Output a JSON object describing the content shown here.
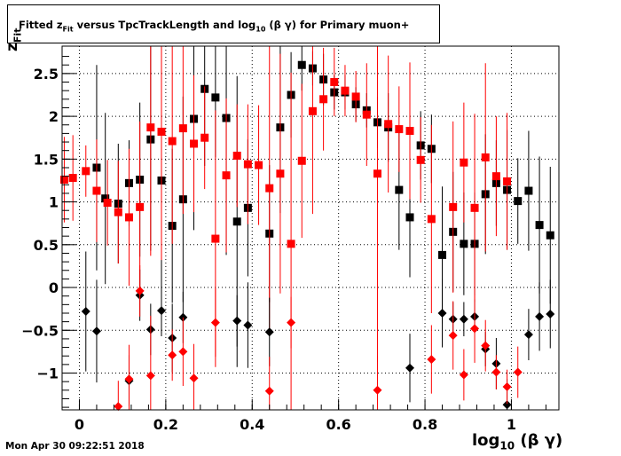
{
  "title": {
    "prefix": "Fitted  z",
    "prefix_sub": "Fit",
    "middle": "  versus TpcTrackLength and log",
    "middle_sub": "10",
    "suffix": " (β γ) for Primary muon+"
  },
  "timestamp": "Mon Apr 30 09:22:51 2018",
  "xlabel": {
    "main": "log",
    "sub": "10",
    "rest": " (β γ)"
  },
  "ylabel": {
    "main": "z",
    "sub": "Fit"
  },
  "chart_data": {
    "type": "scatter",
    "xlim": [
      -0.04,
      1.11
    ],
    "ylim": [
      -1.43,
      2.82
    ],
    "grid": true,
    "xticks": [
      0,
      0.2,
      0.4,
      0.6,
      0.8,
      1
    ],
    "xtick_labels": [
      "0",
      "0.2",
      "0.4",
      "0.6",
      "0.8",
      "1"
    ],
    "yticks": [
      -1,
      -0.5,
      0,
      0.5,
      1,
      1.5,
      2,
      2.5
    ],
    "ytick_labels": [
      "−1",
      "−0.5",
      "0",
      "0.5",
      "1",
      "1.5",
      "2",
      "2.5"
    ],
    "series": [
      {
        "color": "#000000",
        "marker": "square",
        "points": [
          [
            0.04,
            1.4,
            1.2
          ],
          [
            0.06,
            1.04,
            1.0
          ],
          [
            0.09,
            0.98,
            0.7
          ],
          [
            0.115,
            1.22,
            0.5
          ],
          [
            0.14,
            1.26,
            0.9
          ],
          [
            0.165,
            1.73,
            1.3
          ],
          [
            0.19,
            1.25,
            1.5
          ],
          [
            0.215,
            0.72,
            0.9
          ],
          [
            0.24,
            1.03,
            1.2
          ],
          [
            0.265,
            1.97,
            1.3
          ],
          [
            0.29,
            2.32,
            0.9
          ],
          [
            0.315,
            2.22,
            0.7
          ],
          [
            0.34,
            1.98,
            1.6
          ],
          [
            0.365,
            0.77,
            1.7
          ],
          [
            0.39,
            0.93,
            0.8
          ],
          [
            0.44,
            0.63,
            0.8
          ],
          [
            0.465,
            1.87,
            1.0
          ],
          [
            0.49,
            2.25,
            0.5
          ],
          [
            0.515,
            2.6,
            0.3
          ],
          [
            0.54,
            2.56,
            0.2
          ],
          [
            0.565,
            2.43,
            0.3
          ],
          [
            0.59,
            2.28,
            0.2
          ],
          [
            0.615,
            2.28,
            0.2
          ],
          [
            0.64,
            2.14,
            0.2
          ],
          [
            0.665,
            2.07,
            0.2
          ],
          [
            0.69,
            1.93,
            0.3
          ],
          [
            0.715,
            1.87,
            0.4
          ],
          [
            0.74,
            1.14,
            0.7
          ],
          [
            0.765,
            0.82,
            0.7
          ],
          [
            0.79,
            1.66,
            0.4
          ],
          [
            0.815,
            1.62,
            0.4
          ],
          [
            0.84,
            0.38,
            0.8
          ],
          [
            0.865,
            0.65,
            0.7
          ],
          [
            0.89,
            0.51,
            0.6
          ],
          [
            0.915,
            0.51,
            0.6
          ],
          [
            0.94,
            1.09,
            0.7
          ],
          [
            0.965,
            1.22,
            0.5
          ],
          [
            0.99,
            1.14,
            0.7
          ],
          [
            1.015,
            1.01,
            0.5
          ],
          [
            1.04,
            1.13,
            0.7
          ],
          [
            1.065,
            0.73,
            0.8
          ],
          [
            1.09,
            0.61,
            0.8
          ]
        ]
      },
      {
        "color": "#ff0000",
        "marker": "square",
        "points": [
          [
            -0.035,
            1.26,
            0.5
          ],
          [
            -0.015,
            1.28,
            0.5
          ],
          [
            0.015,
            1.36,
            0.3
          ],
          [
            0.04,
            1.13,
            0.6
          ],
          [
            0.065,
            0.99,
            0.5
          ],
          [
            0.09,
            0.88,
            0.6
          ],
          [
            0.115,
            0.82,
            0.8
          ],
          [
            0.14,
            0.94,
            1.0
          ],
          [
            0.165,
            1.87,
            1.5
          ],
          [
            0.19,
            1.82,
            1.5
          ],
          [
            0.215,
            1.71,
            1.2
          ],
          [
            0.24,
            1.86,
            1.0
          ],
          [
            0.265,
            1.68,
            0.8
          ],
          [
            0.29,
            1.75,
            0.6
          ],
          [
            0.315,
            0.57,
            1.5
          ],
          [
            0.34,
            1.31,
            0.9
          ],
          [
            0.365,
            1.54,
            0.6
          ],
          [
            0.39,
            1.44,
            0.7
          ],
          [
            0.415,
            1.43,
            0.7
          ],
          [
            0.44,
            1.16,
            1.7
          ],
          [
            0.465,
            1.33,
            1.4
          ],
          [
            0.49,
            0.51,
            2.0
          ],
          [
            0.515,
            1.48,
            0.9
          ],
          [
            0.54,
            2.06,
            1.2
          ],
          [
            0.565,
            2.2,
            0.6
          ],
          [
            0.59,
            2.4,
            0.4
          ],
          [
            0.615,
            2.3,
            0.3
          ],
          [
            0.64,
            2.23,
            0.3
          ],
          [
            0.665,
            2.02,
            0.6
          ],
          [
            0.69,
            1.33,
            2.2
          ],
          [
            0.715,
            1.91,
            0.8
          ],
          [
            0.74,
            1.85,
            0.5
          ],
          [
            0.765,
            1.83,
            0.8
          ],
          [
            0.79,
            1.49,
            0.5
          ],
          [
            0.815,
            0.8,
            1.1
          ],
          [
            0.865,
            0.94,
            1.0
          ],
          [
            0.89,
            1.46,
            0.7
          ],
          [
            0.915,
            0.93,
            1.1
          ],
          [
            0.94,
            1.52,
            1.1
          ],
          [
            0.965,
            1.3,
            0.7
          ],
          [
            0.99,
            1.24,
            0.8
          ]
        ]
      },
      {
        "color": "#000000",
        "marker": "diamond",
        "points": [
          [
            0.015,
            -0.28,
            0.7
          ],
          [
            0.04,
            -0.51,
            0.6
          ],
          [
            0.115,
            -1.09,
            0.3
          ],
          [
            0.14,
            -0.09,
            0.3
          ],
          [
            0.165,
            -0.49,
            0.3
          ],
          [
            0.19,
            -0.27,
            0.3
          ],
          [
            0.215,
            -0.59,
            0.4
          ],
          [
            0.24,
            -0.35,
            0.3
          ],
          [
            0.365,
            -0.39,
            0.3
          ],
          [
            0.39,
            -0.44,
            0.5
          ],
          [
            0.44,
            -0.52,
            0.4
          ],
          [
            0.765,
            -0.94,
            0.4
          ],
          [
            0.84,
            -0.3,
            0.4
          ],
          [
            0.865,
            -0.37,
            0.2
          ],
          [
            0.89,
            -0.37,
            0.2
          ],
          [
            0.915,
            -0.34,
            0.2
          ],
          [
            0.94,
            -0.72,
            0.2
          ],
          [
            0.965,
            -0.89,
            0.3
          ],
          [
            0.99,
            -1.37,
            0.3
          ],
          [
            1.04,
            -0.55,
            0.3
          ],
          [
            1.065,
            -0.34,
            0.4
          ],
          [
            1.09,
            -0.31,
            0.4
          ]
        ]
      },
      {
        "color": "#ff0000",
        "marker": "diamond",
        "points": [
          [
            0.09,
            -1.39,
            0.3
          ],
          [
            0.115,
            -1.07,
            0.4
          ],
          [
            0.14,
            -0.04,
            0.3
          ],
          [
            0.165,
            -1.03,
            0.7
          ],
          [
            0.215,
            -0.79,
            0.3
          ],
          [
            0.24,
            -0.75,
            0.4
          ],
          [
            0.265,
            -1.06,
            0.4
          ],
          [
            0.315,
            -0.41,
            0.4
          ],
          [
            0.44,
            -1.21,
            0.4
          ],
          [
            0.49,
            -0.41,
            0.3
          ],
          [
            0.69,
            -1.2,
            0.4
          ],
          [
            0.815,
            -0.84,
            0.4
          ],
          [
            0.865,
            -0.56,
            0.4
          ],
          [
            0.89,
            -1.02,
            0.3
          ],
          [
            0.915,
            -0.48,
            0.4
          ],
          [
            0.94,
            -0.68,
            0.3
          ],
          [
            0.965,
            -0.99,
            0.2
          ],
          [
            0.99,
            -1.16,
            0.2
          ],
          [
            1.015,
            -0.99,
            0.3
          ]
        ]
      }
    ]
  }
}
